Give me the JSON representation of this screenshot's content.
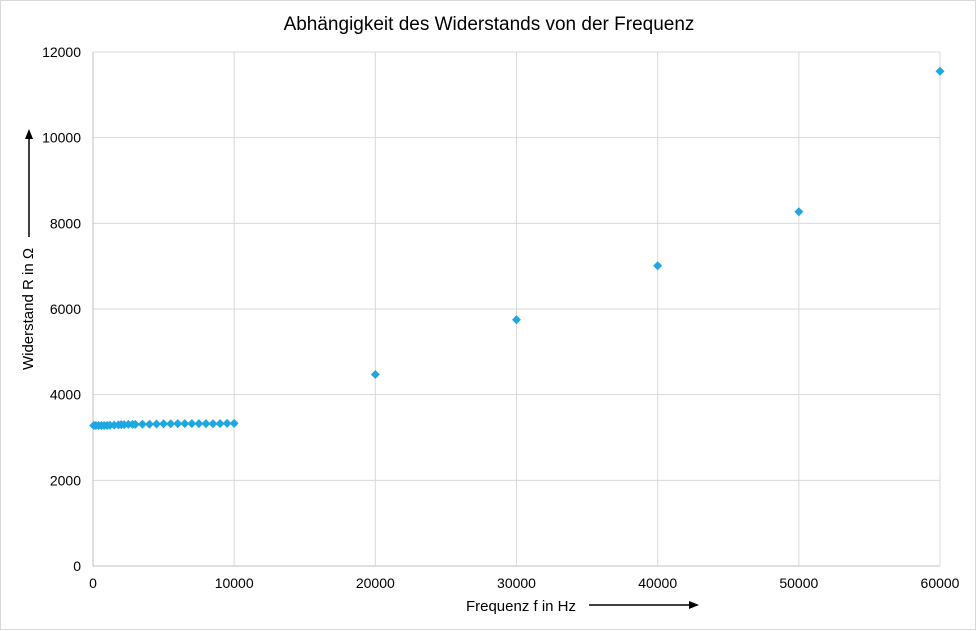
{
  "chart_data": {
    "type": "scatter",
    "title": "Abhängigkeit des Widerstands von der Frequenz",
    "xlabel": "Frequenz f in Hz",
    "ylabel": "Widerstand R in Ω",
    "xlim": [
      0,
      60000
    ],
    "ylim": [
      0,
      12000
    ],
    "xticks": [
      0,
      10000,
      20000,
      30000,
      40000,
      50000,
      60000
    ],
    "yticks": [
      0,
      2000,
      4000,
      6000,
      8000,
      10000,
      12000
    ],
    "grid": true,
    "marker": "diamond",
    "color": "#1ea7e1",
    "series": [
      {
        "x": [
          50,
          200,
          400,
          600,
          800,
          1000,
          1200,
          1500,
          1800,
          2000,
          2200,
          2500,
          2800,
          3000,
          3500,
          4000,
          4500,
          5000,
          5500,
          6000,
          6500,
          7000,
          7500,
          8000,
          8500,
          9000,
          9500,
          10000,
          20000,
          30000,
          40000,
          50000,
          60000
        ],
        "y": [
          3280,
          3280,
          3280,
          3280,
          3280,
          3280,
          3285,
          3290,
          3295,
          3300,
          3300,
          3305,
          3305,
          3305,
          3310,
          3310,
          3315,
          3320,
          3320,
          3325,
          3325,
          3325,
          3325,
          3325,
          3320,
          3325,
          3330,
          3330,
          4470,
          5750,
          7010,
          8270,
          11550
        ]
      }
    ]
  }
}
